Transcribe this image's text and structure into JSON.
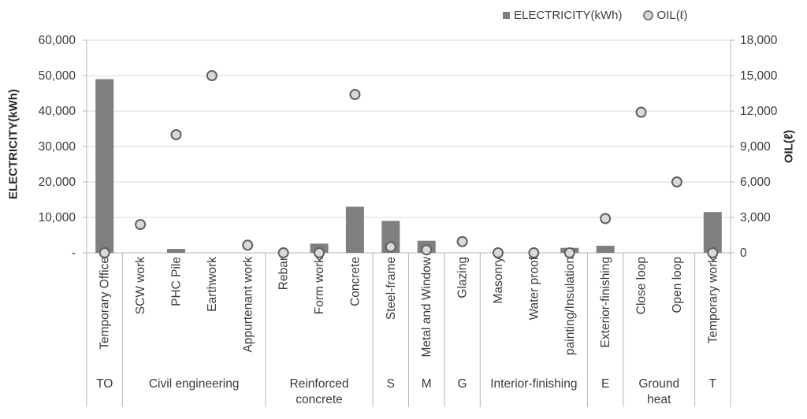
{
  "legend": {
    "items": [
      {
        "label": "ELECTRICITY(kWh)",
        "marker": "square-icon"
      },
      {
        "label": "OIL(ℓ)",
        "marker": "circle-icon"
      }
    ]
  },
  "axes": {
    "left_title": "ELECTRICITY(kWh)",
    "right_title": "OIL(ℓ)",
    "left_tick_labels": [
      "-",
      "10,000",
      "20,000",
      "30,000",
      "40,000",
      "50,000",
      "60,000"
    ],
    "right_tick_labels": [
      "0",
      "3,000",
      "6,000",
      "9,000",
      "12,000",
      "15,000",
      "18,000"
    ]
  },
  "chart_data": {
    "type": "bar",
    "subtype": "combo-bar-scatter",
    "title": "",
    "xlabel": "",
    "ylabel_left": "ELECTRICITY(kWh)",
    "ylabel_right": "OIL(ℓ)",
    "ylim_left": [
      0,
      60000
    ],
    "ylim_right": [
      0,
      18000
    ],
    "ytick_step_left": 10000,
    "ytick_step_right": 3000,
    "grid": true,
    "legend_position": "top-right",
    "categories": [
      "Temporary Office",
      "SCW work",
      "PHC Pile",
      "Earthwork",
      "Appurtenant work",
      "Rebar",
      "Form work",
      "Concrete",
      "Steel-frame",
      "Metal and Window",
      "Glazing",
      "Masonry",
      "Water proof",
      "painting/Insulation",
      "Exterior-finishing",
      "Close loop",
      "Open loop",
      "Temporary work"
    ],
    "series": [
      {
        "name": "ELECTRICITY(kWh)",
        "type": "bar",
        "axis": "left",
        "values": [
          49000,
          0,
          1100,
          0,
          0,
          0,
          2600,
          13000,
          9000,
          3400,
          0,
          0,
          0,
          1400,
          2000,
          0,
          0,
          11500
        ]
      },
      {
        "name": "OIL(ℓ)",
        "type": "scatter",
        "axis": "right",
        "values": [
          0,
          2400,
          10000,
          15000,
          650,
          0,
          0,
          13400,
          500,
          250,
          950,
          0,
          0,
          0,
          2900,
          11900,
          6000,
          0
        ]
      }
    ],
    "groups": [
      {
        "label": "TO",
        "span": 1
      },
      {
        "label": "Civil engineering",
        "span": 4
      },
      {
        "label": "Reinforced\nconcrete",
        "span": 3
      },
      {
        "label": "S",
        "span": 1
      },
      {
        "label": "M",
        "span": 1
      },
      {
        "label": "G",
        "span": 1
      },
      {
        "label": "Interior-finishing",
        "span": 3
      },
      {
        "label": "E",
        "span": 1
      },
      {
        "label": "Ground\nheat",
        "span": 2
      },
      {
        "label": "T",
        "span": 1
      }
    ]
  },
  "colors": {
    "bar": "#7f7f7f",
    "marker_fill": "#d9d9d9",
    "marker_stroke": "#606060",
    "gridline": "#d9d9d9",
    "axis_line": "#b7b7b7",
    "text": "#3b3b3b"
  }
}
